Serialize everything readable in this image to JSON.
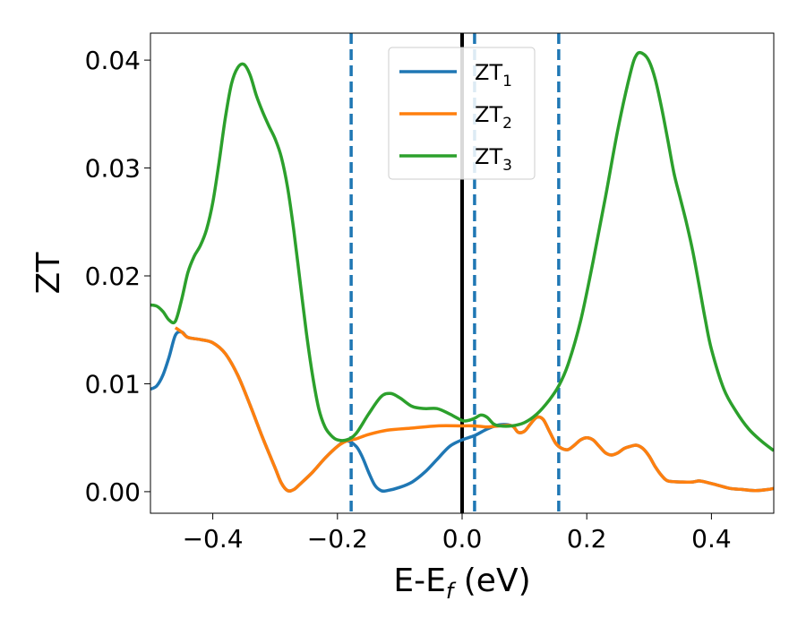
{
  "chart_data": {
    "type": "line",
    "xlabel": "E-E",
    "xlabel_sub": "f",
    "xlabel_unit": " (eV)",
    "ylabel": "ZT",
    "xlim": [
      -0.5,
      0.5
    ],
    "ylim": [
      -0.002,
      0.0425
    ],
    "xticks": [
      {
        "value": -0.4,
        "label": "−0.4"
      },
      {
        "value": -0.2,
        "label": "−0.2"
      },
      {
        "value": 0.0,
        "label": "0.0"
      },
      {
        "value": 0.2,
        "label": "0.2"
      },
      {
        "value": 0.4,
        "label": "0.4"
      }
    ],
    "yticks": [
      {
        "value": 0.0,
        "label": "0.00"
      },
      {
        "value": 0.01,
        "label": "0.01"
      },
      {
        "value": 0.02,
        "label": "0.02"
      },
      {
        "value": 0.03,
        "label": "0.03"
      },
      {
        "value": 0.04,
        "label": "0.04"
      }
    ],
    "grid": false,
    "legend_position": "top-center",
    "vlines": [
      {
        "x": -0.178,
        "style": "dashed",
        "color": "#1f77b4"
      },
      {
        "x": 0.0,
        "style": "solid",
        "color": "#000000"
      },
      {
        "x": 0.02,
        "style": "dashed",
        "color": "#1f77b4"
      },
      {
        "x": 0.155,
        "style": "dashed",
        "color": "#1f77b4"
      }
    ],
    "series": [
      {
        "name": "ZT",
        "sub": "1",
        "color": "#1f77b4",
        "points": [
          [
            -0.5,
            0.0095
          ],
          [
            -0.49,
            0.0098
          ],
          [
            -0.48,
            0.0108
          ],
          [
            -0.47,
            0.0125
          ],
          [
            -0.46,
            0.0145
          ],
          [
            -0.45,
            0.0148
          ],
          [
            -0.44,
            0.0143
          ],
          [
            -0.42,
            0.0141
          ],
          [
            -0.4,
            0.0138
          ],
          [
            -0.38,
            0.0128
          ],
          [
            -0.36,
            0.0108
          ],
          [
            -0.34,
            0.008
          ],
          [
            -0.32,
            0.005
          ],
          [
            -0.3,
            0.0022
          ],
          [
            -0.29,
            0.0008
          ],
          [
            -0.28,
            0.0001
          ],
          [
            -0.27,
            0.0002
          ],
          [
            -0.26,
            0.0007
          ],
          [
            -0.24,
            0.0018
          ],
          [
            -0.22,
            0.0031
          ],
          [
            -0.2,
            0.0042
          ],
          [
            -0.185,
            0.0047
          ],
          [
            -0.17,
            0.0042
          ],
          [
            -0.16,
            0.0032
          ],
          [
            -0.15,
            0.0018
          ],
          [
            -0.14,
            0.0006
          ],
          [
            -0.13,
            0.0001
          ],
          [
            -0.12,
            0.0001
          ],
          [
            -0.1,
            0.0004
          ],
          [
            -0.08,
            0.0009
          ],
          [
            -0.06,
            0.0018
          ],
          [
            -0.04,
            0.003
          ],
          [
            -0.02,
            0.0042
          ],
          [
            0.0,
            0.0048
          ],
          [
            0.02,
            0.0052
          ],
          [
            0.04,
            0.0058
          ],
          [
            0.06,
            0.0062
          ],
          [
            0.08,
            0.0061
          ],
          [
            0.09,
            0.0055
          ],
          [
            0.1,
            0.0056
          ],
          [
            0.11,
            0.0063
          ],
          [
            0.12,
            0.0069
          ],
          [
            0.13,
            0.0067
          ],
          [
            0.14,
            0.0056
          ],
          [
            0.15,
            0.0045
          ],
          [
            0.16,
            0.004
          ],
          [
            0.17,
            0.0039
          ],
          [
            0.18,
            0.0043
          ],
          [
            0.19,
            0.0048
          ],
          [
            0.2,
            0.005
          ],
          [
            0.21,
            0.0048
          ],
          [
            0.22,
            0.0042
          ],
          [
            0.23,
            0.0036
          ],
          [
            0.24,
            0.0034
          ],
          [
            0.25,
            0.0036
          ],
          [
            0.26,
            0.004
          ],
          [
            0.27,
            0.0042
          ],
          [
            0.28,
            0.0043
          ],
          [
            0.29,
            0.004
          ],
          [
            0.3,
            0.0033
          ],
          [
            0.31,
            0.0023
          ],
          [
            0.32,
            0.0015
          ],
          [
            0.33,
            0.001
          ],
          [
            0.35,
            0.0009
          ],
          [
            0.37,
            0.0009
          ],
          [
            0.38,
            0.001
          ],
          [
            0.39,
            0.0009
          ],
          [
            0.41,
            0.0006
          ],
          [
            0.43,
            0.0003
          ],
          [
            0.45,
            0.0002
          ],
          [
            0.47,
            0.0001
          ],
          [
            0.49,
            0.0002
          ],
          [
            0.5,
            0.0003
          ]
        ]
      },
      {
        "name": "ZT",
        "sub": "2",
        "color": "#ff7f0e",
        "points": [
          [
            -0.46,
            0.0152
          ],
          [
            -0.45,
            0.0148
          ],
          [
            -0.44,
            0.0143
          ],
          [
            -0.42,
            0.0141
          ],
          [
            -0.4,
            0.0138
          ],
          [
            -0.38,
            0.0128
          ],
          [
            -0.36,
            0.0108
          ],
          [
            -0.34,
            0.008
          ],
          [
            -0.32,
            0.005
          ],
          [
            -0.3,
            0.0022
          ],
          [
            -0.29,
            0.0008
          ],
          [
            -0.28,
            0.0001
          ],
          [
            -0.27,
            0.0002
          ],
          [
            -0.26,
            0.0007
          ],
          [
            -0.24,
            0.0018
          ],
          [
            -0.22,
            0.0031
          ],
          [
            -0.2,
            0.0042
          ],
          [
            -0.185,
            0.0047
          ],
          [
            -0.17,
            0.0049
          ],
          [
            -0.15,
            0.0053
          ],
          [
            -0.12,
            0.0057
          ],
          [
            -0.08,
            0.0059
          ],
          [
            -0.04,
            0.0061
          ],
          [
            0.0,
            0.0061
          ],
          [
            0.02,
            0.0061
          ],
          [
            0.04,
            0.006
          ],
          [
            0.06,
            0.0061
          ],
          [
            0.08,
            0.0061
          ],
          [
            0.09,
            0.0055
          ],
          [
            0.1,
            0.0056
          ],
          [
            0.11,
            0.0063
          ],
          [
            0.12,
            0.0069
          ],
          [
            0.13,
            0.0067
          ],
          [
            0.14,
            0.0056
          ],
          [
            0.15,
            0.0045
          ],
          [
            0.16,
            0.004
          ],
          [
            0.17,
            0.0039
          ],
          [
            0.18,
            0.0043
          ],
          [
            0.19,
            0.0048
          ],
          [
            0.2,
            0.005
          ],
          [
            0.21,
            0.0048
          ],
          [
            0.22,
            0.0042
          ],
          [
            0.23,
            0.0036
          ],
          [
            0.24,
            0.0034
          ],
          [
            0.25,
            0.0036
          ],
          [
            0.26,
            0.004
          ],
          [
            0.27,
            0.0042
          ],
          [
            0.28,
            0.0043
          ],
          [
            0.29,
            0.004
          ],
          [
            0.3,
            0.0033
          ],
          [
            0.31,
            0.0023
          ],
          [
            0.32,
            0.0015
          ],
          [
            0.33,
            0.001
          ],
          [
            0.35,
            0.0009
          ],
          [
            0.37,
            0.0009
          ],
          [
            0.38,
            0.001
          ],
          [
            0.39,
            0.0009
          ],
          [
            0.41,
            0.0006
          ],
          [
            0.43,
            0.0003
          ],
          [
            0.45,
            0.0002
          ],
          [
            0.47,
            0.0001
          ],
          [
            0.49,
            0.0002
          ],
          [
            0.5,
            0.0003
          ]
        ]
      },
      {
        "name": "ZT",
        "sub": "3",
        "color": "#2ca02c",
        "points": [
          [
            -0.5,
            0.0173
          ],
          [
            -0.49,
            0.0172
          ],
          [
            -0.48,
            0.0167
          ],
          [
            -0.47,
            0.0159
          ],
          [
            -0.46,
            0.0158
          ],
          [
            -0.45,
            0.0178
          ],
          [
            -0.44,
            0.0203
          ],
          [
            -0.43,
            0.0218
          ],
          [
            -0.42,
            0.0228
          ],
          [
            -0.41,
            0.0243
          ],
          [
            -0.4,
            0.0268
          ],
          [
            -0.39,
            0.0305
          ],
          [
            -0.38,
            0.0346
          ],
          [
            -0.37,
            0.0378
          ],
          [
            -0.36,
            0.0393
          ],
          [
            -0.35,
            0.0396
          ],
          [
            -0.34,
            0.0386
          ],
          [
            -0.33,
            0.0367
          ],
          [
            -0.32,
            0.0352
          ],
          [
            -0.31,
            0.0339
          ],
          [
            -0.3,
            0.0327
          ],
          [
            -0.29,
            0.031
          ],
          [
            -0.28,
            0.0282
          ],
          [
            -0.27,
            0.0242
          ],
          [
            -0.26,
            0.0195
          ],
          [
            -0.25,
            0.0148
          ],
          [
            -0.24,
            0.0108
          ],
          [
            -0.23,
            0.0077
          ],
          [
            -0.22,
            0.006
          ],
          [
            -0.21,
            0.0052
          ],
          [
            -0.2,
            0.0048
          ],
          [
            -0.185,
            0.0048
          ],
          [
            -0.17,
            0.0054
          ],
          [
            -0.15,
            0.0072
          ],
          [
            -0.13,
            0.0088
          ],
          [
            -0.115,
            0.0091
          ],
          [
            -0.1,
            0.0087
          ],
          [
            -0.08,
            0.0079
          ],
          [
            -0.06,
            0.0077
          ],
          [
            -0.04,
            0.0077
          ],
          [
            -0.02,
            0.0072
          ],
          [
            0.0,
            0.0066
          ],
          [
            0.01,
            0.0066
          ],
          [
            0.02,
            0.0068
          ],
          [
            0.03,
            0.0071
          ],
          [
            0.04,
            0.0069
          ],
          [
            0.05,
            0.0063
          ],
          [
            0.06,
            0.0061
          ],
          [
            0.08,
            0.0061
          ],
          [
            0.1,
            0.0064
          ],
          [
            0.12,
            0.0072
          ],
          [
            0.14,
            0.0085
          ],
          [
            0.155,
            0.0098
          ],
          [
            0.17,
            0.0118
          ],
          [
            0.19,
            0.0158
          ],
          [
            0.21,
            0.0213
          ],
          [
            0.23,
            0.0273
          ],
          [
            0.25,
            0.0336
          ],
          [
            0.27,
            0.0388
          ],
          [
            0.28,
            0.0405
          ],
          [
            0.29,
            0.0406
          ],
          [
            0.3,
            0.0399
          ],
          [
            0.31,
            0.0382
          ],
          [
            0.32,
            0.0356
          ],
          [
            0.33,
            0.0326
          ],
          [
            0.34,
            0.0295
          ],
          [
            0.35,
            0.0272
          ],
          [
            0.36,
            0.0249
          ],
          [
            0.37,
            0.0223
          ],
          [
            0.38,
            0.0192
          ],
          [
            0.39,
            0.016
          ],
          [
            0.4,
            0.0132
          ],
          [
            0.42,
            0.0095
          ],
          [
            0.44,
            0.0074
          ],
          [
            0.46,
            0.0058
          ],
          [
            0.48,
            0.0047
          ],
          [
            0.5,
            0.0038
          ]
        ]
      }
    ]
  }
}
